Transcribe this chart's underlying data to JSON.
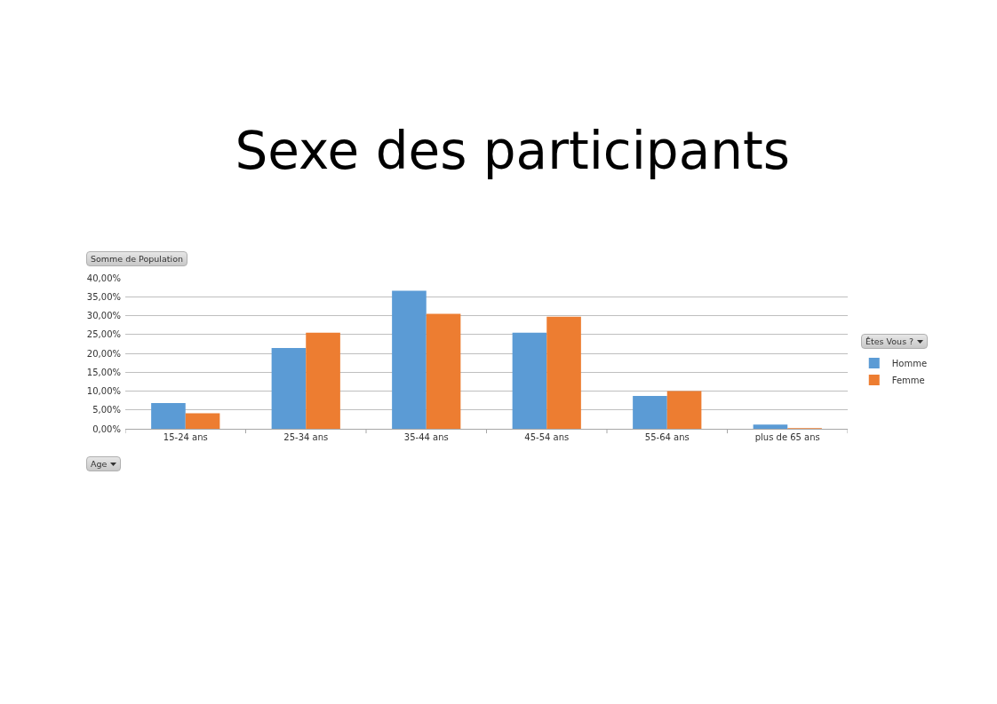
{
  "chart_data": {
    "type": "bar",
    "title": "Sexe des participants",
    "ylabel": "Somme de Population",
    "xlabel": "Age",
    "legend_title": "Êtes Vous ?",
    "categories": [
      "15-24 ans",
      "25-34 ans",
      "35-44 ans",
      "45-54 ans",
      "55-64 ans",
      "plus de 65 ans"
    ],
    "series": [
      {
        "name": "Homme",
        "color": "#5b9bd5",
        "values": [
          6.8,
          21.4,
          36.6,
          25.5,
          8.7,
          1.1
        ]
      },
      {
        "name": "Femme",
        "color": "#ed7d31",
        "values": [
          4.1,
          25.5,
          30.5,
          29.7,
          10.0,
          0.2
        ]
      }
    ],
    "ylim": [
      0,
      40
    ],
    "yticks": [
      {
        "value": 0,
        "label": "0,00%"
      },
      {
        "value": 5,
        "label": "5,00%"
      },
      {
        "value": 10,
        "label": "10,00%"
      },
      {
        "value": 15,
        "label": "15,00%"
      },
      {
        "value": 20,
        "label": "20,00%"
      },
      {
        "value": 25,
        "label": "25,00%"
      },
      {
        "value": 30,
        "label": "30,00%"
      },
      {
        "value": 35,
        "label": "35,00%"
      },
      {
        "value": 40,
        "label": "40,00%"
      }
    ],
    "grid": "y",
    "legend": "right"
  }
}
